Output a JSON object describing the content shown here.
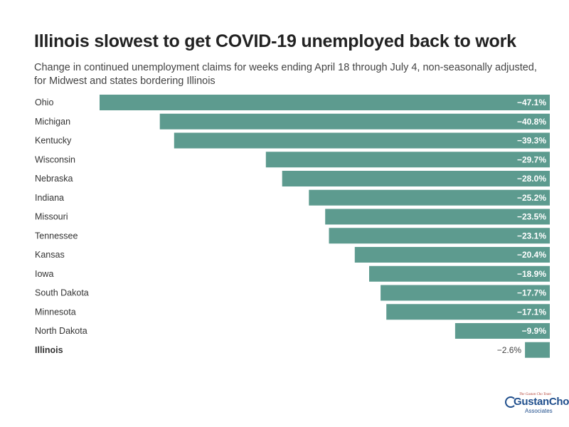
{
  "title": "Illinois slowest to get COVID-19 unemployed back to work",
  "subtitle": "Change in continued unemployment claims for weeks ending April 18 through July 4, non-seasonally adjusted, for Midwest and states bordering Illinois",
  "logo": {
    "tagline": "The Gustan Cho Team",
    "name": "GustanCho",
    "sub": "Associates"
  },
  "colors": {
    "bar": "#5d9b8f",
    "highlight_bar": "#5d9b8f",
    "value_label_inside": "#ffffff",
    "value_label_outside": "#444444",
    "category_label": "#333333"
  },
  "chart_data": {
    "type": "bar",
    "orientation": "horizontal",
    "categories": [
      "Ohio",
      "Michigan",
      "Kentucky",
      "Wisconsin",
      "Nebraska",
      "Indiana",
      "Missouri",
      "Tennessee",
      "Kansas",
      "Iowa",
      "South Dakota",
      "Minnesota",
      "North Dakota",
      "Illinois"
    ],
    "values": [
      -47.1,
      -40.8,
      -39.3,
      -29.7,
      -28.0,
      -25.2,
      -23.5,
      -23.1,
      -20.4,
      -18.9,
      -17.7,
      -17.1,
      -9.9,
      -2.6
    ],
    "value_labels": [
      "−47.1%",
      "−40.8%",
      "−39.3%",
      "−29.7%",
      "−28.0%",
      "−25.2%",
      "−23.5%",
      "−23.1%",
      "−20.4%",
      "−18.9%",
      "−17.7%",
      "−17.1%",
      "−9.9%",
      "−2.6%"
    ],
    "highlight": "Illinois",
    "xlim": [
      -47.1,
      0
    ],
    "unit": "%",
    "grid": false,
    "legend": "none"
  }
}
